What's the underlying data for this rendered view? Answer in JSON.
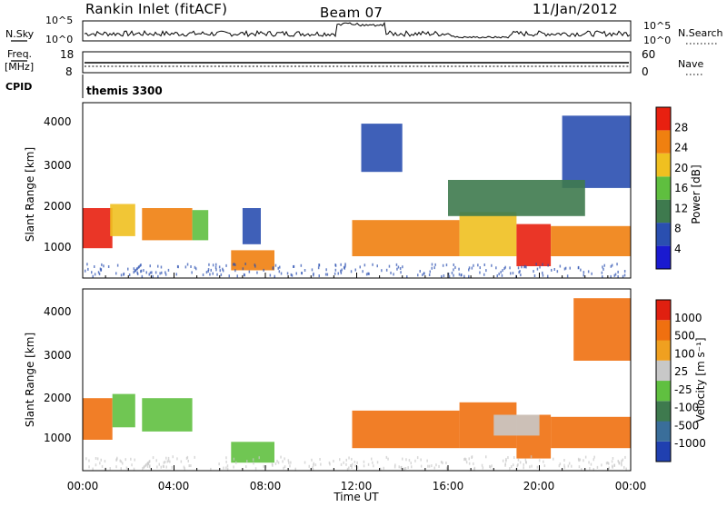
{
  "header": {
    "station": "Rankin Inlet (fitACF)",
    "beam": "Beam 07",
    "date": "11/Jan/2012"
  },
  "noise_panel": {
    "left_label": "N.Sky",
    "right_label": "N.Search",
    "left_ticks": [
      "10^5",
      "10^0"
    ],
    "right_ticks": [
      "10^5",
      "10^0"
    ]
  },
  "freq_panel": {
    "left_label_1": "Freq.",
    "left_label_2": "[MHz]",
    "right_label": "Nave",
    "left_ticks": [
      "18",
      "8"
    ],
    "right_ticks": [
      "60",
      "0"
    ]
  },
  "cpid_panel": {
    "label": "CPID",
    "value": "themis 3300"
  },
  "power_panel": {
    "ylabel": "Slant Range [km]",
    "y_ticks": [
      "4000",
      "3000",
      "2000",
      "1000"
    ],
    "colorbar_label": "Power [dB]",
    "colorbar_ticks": [
      "28",
      "24",
      "20",
      "16",
      "12",
      "8",
      "4"
    ],
    "colors": [
      "#1a1ad0",
      "#2a4fb0",
      "#3e7a4e",
      "#5fbf3f",
      "#f0c020",
      "#f08010",
      "#e82010"
    ]
  },
  "velocity_panel": {
    "ylabel": "Slant Range [km]",
    "y_ticks": [
      "4000",
      "3000",
      "2000",
      "1000"
    ],
    "colorbar_label": "Velocity [m s⁻¹]",
    "colorbar_ticks": [
      "1000",
      "500",
      "100",
      "25",
      "-25",
      "-100",
      "-500",
      "-1000"
    ],
    "colors": [
      "#2040b0",
      "#3a6e9a",
      "#3e7a4e",
      "#60c040",
      "#c8c8c8",
      "#f0a020",
      "#f07010",
      "#e02010"
    ]
  },
  "x_axis": {
    "label": "Time UT",
    "ticks": [
      "00:00",
      "04:00",
      "08:00",
      "12:00",
      "16:00",
      "20:00",
      "00:00"
    ]
  },
  "chart_data": [
    {
      "type": "heatmap",
      "title": "Rankin Inlet (fitACF) Beam 07 11/Jan/2012",
      "xlabel": "Time UT",
      "ylabel": "Slant Range [km]",
      "colorbar": "Power [dB]",
      "x_range_hours": [
        0,
        24
      ],
      "y_range_km": [
        180,
        4500
      ],
      "color_range": [
        0,
        30
      ],
      "echo_regions": [
        {
          "t0": 0.0,
          "t1": 1.3,
          "r0": 900,
          "r1": 1900,
          "value": 26
        },
        {
          "t0": 1.2,
          "t1": 2.3,
          "r0": 1200,
          "r1": 2000,
          "value": 20
        },
        {
          "t0": 2.6,
          "t1": 4.8,
          "r0": 1100,
          "r1": 1900,
          "value": 22
        },
        {
          "t0": 4.8,
          "t1": 5.5,
          "r0": 1100,
          "r1": 1850,
          "value": 16
        },
        {
          "t0": 6.5,
          "t1": 8.4,
          "r0": 350,
          "r1": 850,
          "value": 22
        },
        {
          "t0": 7.0,
          "t1": 7.8,
          "r0": 1000,
          "r1": 1900,
          "value": 8
        },
        {
          "t0": 11.8,
          "t1": 16.5,
          "r0": 700,
          "r1": 1600,
          "value": 22
        },
        {
          "t0": 16.5,
          "t1": 19.0,
          "r0": 700,
          "r1": 1800,
          "value": 18
        },
        {
          "t0": 19.0,
          "t1": 20.5,
          "r0": 450,
          "r1": 1500,
          "value": 28
        },
        {
          "t0": 20.5,
          "t1": 24.0,
          "r0": 700,
          "r1": 1450,
          "value": 24
        },
        {
          "t0": 12.2,
          "t1": 14.0,
          "r0": 2800,
          "r1": 4000,
          "value": 6
        },
        {
          "t0": 21.0,
          "t1": 24.0,
          "r0": 2400,
          "r1": 4200,
          "value": 8
        },
        {
          "t0": 16.0,
          "t1": 22.0,
          "r0": 1700,
          "r1": 2600,
          "value": 10
        }
      ]
    },
    {
      "type": "heatmap",
      "title": "Rankin Inlet (fitACF) Beam 07 11/Jan/2012",
      "xlabel": "Time UT",
      "ylabel": "Slant Range [km]",
      "colorbar": "Velocity [m s-1]",
      "x_range_hours": [
        0,
        24
      ],
      "y_range_km": [
        180,
        4500
      ],
      "color_range": [
        -1000,
        1000
      ],
      "echo_regions": [
        {
          "t0": 0.0,
          "t1": 1.3,
          "r0": 900,
          "r1": 1900,
          "value": -150
        },
        {
          "t0": 1.3,
          "t1": 2.3,
          "r0": 1200,
          "r1": 2000,
          "value": 60
        },
        {
          "t0": 2.6,
          "t1": 4.8,
          "r0": 1100,
          "r1": 1900,
          "value": 80
        },
        {
          "t0": 6.5,
          "t1": 8.4,
          "r0": 350,
          "r1": 850,
          "value": 50
        },
        {
          "t0": 11.8,
          "t1": 16.5,
          "r0": 700,
          "r1": 1600,
          "value": -150
        },
        {
          "t0": 16.5,
          "t1": 19.0,
          "r0": 700,
          "r1": 1800,
          "value": -200
        },
        {
          "t0": 19.0,
          "t1": 20.5,
          "r0": 450,
          "r1": 1500,
          "value": -250
        },
        {
          "t0": 20.5,
          "t1": 24.0,
          "r0": 700,
          "r1": 1450,
          "value": -180
        },
        {
          "t0": 21.5,
          "t1": 24.0,
          "r0": 2800,
          "r1": 4300,
          "value": -120
        },
        {
          "t0": 18.0,
          "t1": 20.0,
          "r0": 1000,
          "r1": 1500,
          "value": 0
        }
      ]
    }
  ]
}
